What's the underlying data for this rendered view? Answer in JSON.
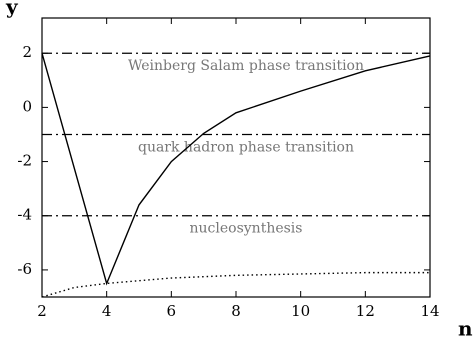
{
  "chart_data": {
    "type": "line",
    "x_label": "n",
    "y_label": "y",
    "xlim": [
      2,
      14
    ],
    "ylim": [
      -7,
      3.3
    ],
    "xticks": [
      2,
      4,
      6,
      8,
      10,
      12,
      14
    ],
    "yticks": [
      -6,
      -4,
      -2,
      0,
      2
    ],
    "reference_lines": [
      {
        "value": 2,
        "label": "Weinberg Salam phase transition"
      },
      {
        "value": -1,
        "label": "quark hadron phase transition"
      },
      {
        "value": -4,
        "label": "nucleosynthesis"
      }
    ],
    "series": [
      {
        "color": "#000000",
        "style": "solid",
        "x": [
          2,
          4,
          5,
          6,
          7,
          8,
          10,
          12,
          14
        ],
        "values": [
          2,
          -6.5,
          -3.6,
          -2,
          -0.96,
          -0.2,
          0.6,
          1.35,
          1.9
        ]
      },
      {
        "color": "#000000",
        "style": "dotted",
        "x": [
          2,
          3,
          4,
          6,
          8,
          10,
          12,
          14
        ],
        "values": [
          -7,
          -6.65,
          -6.5,
          -6.3,
          -6.2,
          -6.15,
          -6.1,
          -6.1
        ]
      }
    ]
  }
}
